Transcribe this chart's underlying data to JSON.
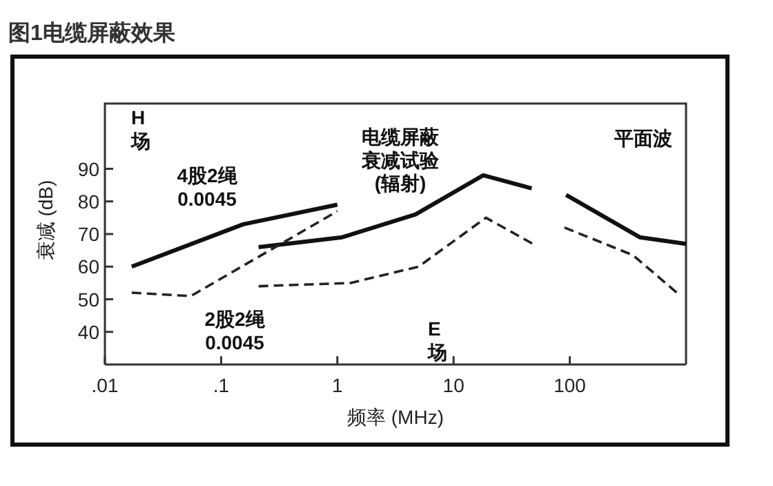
{
  "chart_data": {
    "type": "line",
    "title": "图1电缆屏蔽效果",
    "xlabel": "频率 (MHz)",
    "ylabel": "衰减 (dB)",
    "log": "x",
    "xlim": [
      0.01,
      1000
    ],
    "xticks": [
      {
        "value": 0.01,
        "label": ".01"
      },
      {
        "value": 0.1,
        "label": ".1"
      },
      1,
      10,
      100
    ],
    "ylim": [
      30,
      110
    ],
    "yticks": [
      40,
      50,
      60,
      70,
      80,
      90
    ],
    "grid": false,
    "marker": "none",
    "series": [
      {
        "name": "4股2绳 0.0045",
        "color": "#111111",
        "line_style": "solid",
        "x": [
          0.017,
          0.155,
          1.0
        ],
        "values": [
          60,
          73,
          79
        ]
      },
      {
        "color": "#111111",
        "line_style": "solid",
        "x": [
          0.21,
          1.1,
          4.7,
          18,
          47,
          70,
          93,
          400,
          1000
        ],
        "values": [
          66,
          69,
          76,
          88,
          84,
          null,
          82,
          69,
          67
        ]
      },
      {
        "name": "2股2绳 0.0045",
        "color": "#222222",
        "line_style": "dashed",
        "x": [
          0.017,
          0.055,
          1.0
        ],
        "values": [
          52,
          51,
          77
        ]
      },
      {
        "color": "#222222",
        "line_style": "dashed",
        "x": [
          0.21,
          1.3,
          5,
          19,
          48,
          70,
          90,
          350,
          900
        ],
        "values": [
          54,
          55,
          60,
          75,
          67,
          null,
          72,
          63.5,
          51
        ]
      }
    ],
    "annotations": [
      "H 场",
      "电缆屏蔽衰减试验(辐射)",
      "平面波",
      "E 场"
    ]
  }
}
